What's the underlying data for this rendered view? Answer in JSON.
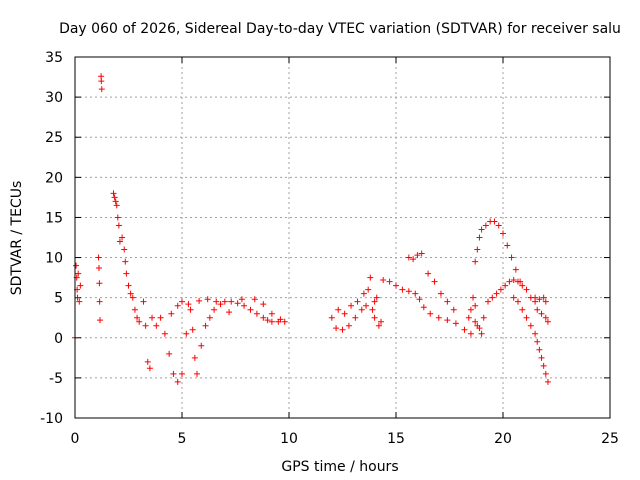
{
  "chart_data": {
    "type": "scatter",
    "title": "Day 060 of 2026, Sidereal Day-to-day VTEC variation (SDTVAR) for receiver salu",
    "xlabel": "GPS time / hours",
    "ylabel": "SDTVAR / TECUs",
    "xlim": [
      0,
      25
    ],
    "ylim": [
      -10,
      35
    ],
    "xticks": [
      0,
      5,
      10,
      15,
      20,
      25
    ],
    "yticks": [
      -10,
      -5,
      0,
      5,
      10,
      15,
      20,
      25,
      30,
      35
    ],
    "grid": true,
    "marker": "+",
    "series_color": "#ff0000",
    "series": [
      {
        "name": "SDTVAR",
        "points": [
          [
            0.0,
            0.0
          ],
          [
            0.05,
            9.0
          ],
          [
            0.08,
            7.5
          ],
          [
            0.1,
            6.0
          ],
          [
            0.12,
            5.0
          ],
          [
            0.15,
            8.0
          ],
          [
            0.2,
            4.5
          ],
          [
            0.25,
            6.5
          ],
          [
            1.1,
            10.0
          ],
          [
            1.12,
            8.7
          ],
          [
            1.14,
            6.8
          ],
          [
            1.15,
            4.5
          ],
          [
            1.17,
            2.2
          ],
          [
            1.22,
            32.6
          ],
          [
            1.23,
            32.0
          ],
          [
            1.25,
            31.0
          ],
          [
            1.8,
            18.0
          ],
          [
            1.85,
            17.5
          ],
          [
            1.9,
            17.0
          ],
          [
            1.95,
            16.5
          ],
          [
            2.0,
            15.0
          ],
          [
            2.05,
            14.0
          ],
          [
            2.1,
            12.0
          ],
          [
            2.2,
            12.5
          ],
          [
            2.3,
            11.0
          ],
          [
            2.35,
            9.5
          ],
          [
            2.4,
            8.0
          ],
          [
            2.5,
            6.5
          ],
          [
            2.6,
            5.5
          ],
          [
            2.7,
            5.0
          ],
          [
            2.8,
            3.5
          ],
          [
            2.9,
            2.5
          ],
          [
            3.0,
            2.0
          ],
          [
            3.2,
            4.5
          ],
          [
            3.3,
            1.5
          ],
          [
            3.4,
            -3.0
          ],
          [
            3.5,
            -3.8
          ],
          [
            3.8,
            1.5
          ],
          [
            4.0,
            2.5
          ],
          [
            4.2,
            0.5
          ],
          [
            4.4,
            -2.0
          ],
          [
            4.6,
            -4.5
          ],
          [
            4.8,
            -5.5
          ],
          [
            5.0,
            -4.5
          ],
          [
            5.2,
            0.5
          ],
          [
            5.4,
            3.5
          ],
          [
            5.5,
            1.0
          ],
          [
            5.6,
            -2.5
          ],
          [
            5.7,
            -4.5
          ],
          [
            5.9,
            -1.0
          ],
          [
            6.1,
            1.5
          ],
          [
            6.3,
            2.5
          ],
          [
            6.5,
            3.5
          ],
          [
            6.8,
            4.2
          ],
          [
            7.0,
            4.5
          ],
          [
            7.3,
            4.5
          ],
          [
            7.6,
            4.3
          ],
          [
            7.9,
            4.0
          ],
          [
            8.2,
            3.5
          ],
          [
            8.5,
            3.0
          ],
          [
            8.8,
            2.5
          ],
          [
            9.0,
            2.2
          ],
          [
            9.2,
            2.0
          ],
          [
            9.5,
            2.0
          ],
          [
            9.8,
            2.0
          ],
          [
            5.3,
            4.2
          ],
          [
            5.8,
            4.6
          ],
          [
            6.2,
            4.8
          ],
          [
            6.6,
            4.5
          ],
          [
            7.2,
            3.2
          ],
          [
            7.8,
            4.8
          ],
          [
            8.4,
            4.8
          ],
          [
            8.8,
            4.2
          ],
          [
            9.2,
            3.0
          ],
          [
            9.6,
            2.3
          ],
          [
            4.5,
            3.0
          ],
          [
            4.8,
            4.0
          ],
          [
            5.0,
            4.5
          ],
          [
            3.6,
            2.5
          ],
          [
            12.0,
            2.5
          ],
          [
            12.3,
            3.5
          ],
          [
            12.6,
            3.0
          ],
          [
            12.9,
            4.0
          ],
          [
            13.2,
            4.5
          ],
          [
            13.5,
            5.5
          ],
          [
            13.7,
            6.0
          ],
          [
            12.2,
            1.2
          ],
          [
            12.5,
            1.0
          ],
          [
            12.8,
            1.5
          ],
          [
            13.1,
            2.5
          ],
          [
            13.4,
            3.5
          ],
          [
            13.6,
            4.0
          ],
          [
            13.8,
            7.5
          ],
          [
            13.9,
            3.5
          ],
          [
            14.0,
            4.5
          ],
          [
            14.0,
            2.5
          ],
          [
            14.1,
            5.0
          ],
          [
            14.2,
            1.5
          ],
          [
            14.3,
            2.0
          ],
          [
            14.4,
            7.2
          ],
          [
            14.7,
            7.0
          ],
          [
            15.0,
            6.5
          ],
          [
            15.3,
            6.0
          ],
          [
            15.6,
            5.8
          ],
          [
            15.9,
            5.5
          ],
          [
            16.1,
            4.8
          ],
          [
            15.6,
            10.0
          ],
          [
            15.8,
            9.8
          ],
          [
            16.0,
            10.3
          ],
          [
            16.2,
            10.5
          ],
          [
            16.5,
            8.0
          ],
          [
            16.8,
            7.0
          ],
          [
            17.1,
            5.5
          ],
          [
            17.4,
            4.5
          ],
          [
            17.7,
            3.5
          ],
          [
            16.3,
            3.8
          ],
          [
            16.6,
            3.0
          ],
          [
            17.0,
            2.5
          ],
          [
            17.4,
            2.2
          ],
          [
            17.8,
            1.8
          ],
          [
            18.2,
            1.0
          ],
          [
            18.5,
            0.5
          ],
          [
            18.8,
            1.5
          ],
          [
            19.1,
            2.5
          ],
          [
            18.4,
            2.5
          ],
          [
            18.7,
            2.0
          ],
          [
            18.9,
            1.2
          ],
          [
            19.0,
            0.5
          ],
          [
            18.6,
            5.0
          ],
          [
            18.7,
            4.0
          ],
          [
            18.5,
            3.5
          ],
          [
            18.7,
            9.5
          ],
          [
            18.8,
            11.0
          ],
          [
            18.9,
            12.5
          ],
          [
            19.0,
            13.5
          ],
          [
            19.2,
            14.0
          ],
          [
            19.4,
            14.5
          ],
          [
            19.6,
            14.5
          ],
          [
            19.8,
            14.0
          ],
          [
            20.0,
            13.0
          ],
          [
            20.2,
            11.5
          ],
          [
            20.4,
            10.0
          ],
          [
            20.6,
            8.5
          ],
          [
            20.8,
            7.0
          ],
          [
            19.3,
            4.5
          ],
          [
            19.5,
            5.0
          ],
          [
            19.7,
            5.5
          ],
          [
            19.9,
            6.0
          ],
          [
            20.1,
            6.5
          ],
          [
            20.3,
            7.0
          ],
          [
            20.5,
            7.2
          ],
          [
            20.7,
            7.0
          ],
          [
            20.9,
            6.5
          ],
          [
            21.1,
            6.0
          ],
          [
            21.3,
            5.0
          ],
          [
            21.5,
            4.5
          ],
          [
            20.5,
            5.0
          ],
          [
            20.7,
            4.5
          ],
          [
            20.9,
            3.5
          ],
          [
            21.1,
            2.5
          ],
          [
            21.3,
            1.5
          ],
          [
            21.5,
            0.5
          ],
          [
            21.6,
            -0.5
          ],
          [
            21.7,
            -1.5
          ],
          [
            21.8,
            -2.5
          ],
          [
            21.9,
            -3.5
          ],
          [
            22.0,
            -4.5
          ],
          [
            22.1,
            -5.5
          ],
          [
            21.5,
            5.0
          ],
          [
            21.7,
            4.8
          ],
          [
            21.9,
            5.0
          ],
          [
            22.0,
            4.5
          ],
          [
            21.6,
            3.5
          ],
          [
            21.8,
            3.0
          ],
          [
            22.0,
            2.5
          ],
          [
            22.1,
            2.0
          ]
        ]
      }
    ]
  }
}
